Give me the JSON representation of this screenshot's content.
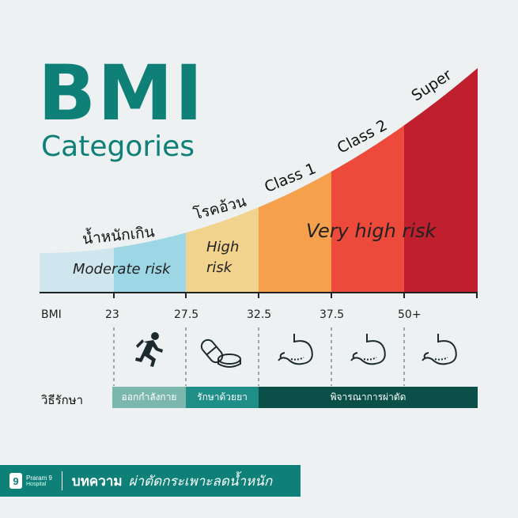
{
  "title": {
    "main": "BMI",
    "sub": "Categories"
  },
  "categories": [
    {
      "label": "น้ำหนักเกิน"
    },
    {
      "label": "โรคอ้วน"
    },
    {
      "label": "Class 1"
    },
    {
      "label": "Class 2"
    },
    {
      "label": "Super"
    }
  ],
  "risk_labels": {
    "moderate": "Moderate risk",
    "high_line1": "High",
    "high_line2": "risk",
    "very_high": "Very high risk"
  },
  "bmi_axis": {
    "label": "BMI",
    "ticks": [
      "23",
      "27.5",
      "32.5",
      "37.5",
      "50+"
    ]
  },
  "icons": [
    "running-person-icon",
    "pills-icon",
    "stomach-icon",
    "stomach-icon",
    "stomach-icon"
  ],
  "treatment": {
    "label": "วิธีรักษา",
    "segments": [
      {
        "label": "ออกกำลังกาย"
      },
      {
        "label": "รักษาด้วยยา"
      },
      {
        "label": "พิจารณาการผ่าตัด"
      }
    ]
  },
  "footer": {
    "logo_number": "9",
    "logo_name": "Praram 9",
    "logo_sub": "Hospital",
    "article_label": "บทความ",
    "article_title": "ผ่าตัดกระเพาะลดน้ำหนัก"
  },
  "colors": {
    "teal": "#0e8077",
    "dark_teal": "#0b5048",
    "mid_teal": "#1f8e86",
    "light_teal": "#7cb7ad",
    "band_colors": [
      "#cfe6ee",
      "#9dd7e6",
      "#f2d38e",
      "#f5a04d",
      "#ee4a3c",
      "#c01f2e"
    ]
  }
}
